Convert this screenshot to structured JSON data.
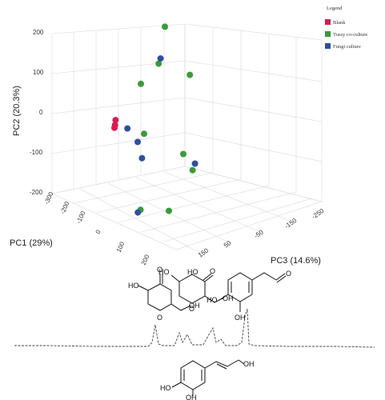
{
  "chart_data": {
    "type": "scatter",
    "dimensions": 3,
    "axes": {
      "pc1": {
        "label": "PC1 (29%)",
        "ticks": [
          "-300",
          "-200",
          "-100",
          "0",
          "100",
          "200"
        ]
      },
      "pc2": {
        "label": "PC2 (20.3%)",
        "ticks": [
          "200",
          "100",
          "0",
          "-100",
          "-200"
        ]
      },
      "pc3": {
        "label": "PC3 (14.6%)",
        "ticks": [
          "-250",
          "-150",
          "-50",
          "50",
          "150"
        ]
      }
    },
    "grid": true,
    "legend": {
      "title": "Legend",
      "placement": "top-right",
      "entries": [
        {
          "name": "Blank",
          "color": "#d81b54"
        },
        {
          "name": "Tussy co-culture",
          "color": "#3a9b3a"
        },
        {
          "name": "Fungi culture",
          "color": "#2e4f9e"
        }
      ]
    },
    "series": [
      {
        "name": "Blank",
        "color": "#d81b54",
        "points": [
          {
            "pc1": -150,
            "pc3": 40,
            "pc2": 15
          },
          {
            "pc1": -145,
            "pc3": 45,
            "pc2": 5
          },
          {
            "pc1": -140,
            "pc3": 50,
            "pc2": 0
          }
        ]
      },
      {
        "name": "Tussy co-culture",
        "color": "#3a9b3a",
        "points": [
          {
            "pc1": -80,
            "pc3": -100,
            "pc2": 240
          },
          {
            "pc1": -85,
            "pc3": -80,
            "pc2": 150
          },
          {
            "pc1": -60,
            "pc3": 0,
            "pc2": 120
          },
          {
            "pc1": -60,
            "pc3": -180,
            "pc2": 110
          },
          {
            "pc1": -40,
            "pc3": 0,
            "pc2": 0
          },
          {
            "pc1": -50,
            "pc3": -150,
            "pc2": -80
          },
          {
            "pc1": -60,
            "pc3": -190,
            "pc2": -130
          },
          {
            "pc1": 40,
            "pc3": 60,
            "pc2": -160
          },
          {
            "pc1": 30,
            "pc3": -50,
            "pc2": -185
          }
        ]
      },
      {
        "name": "Fungi culture",
        "color": "#2e4f9e",
        "points": [
          {
            "pc1": -90,
            "pc3": -90,
            "pc2": 160
          },
          {
            "pc1": -110,
            "pc3": 20,
            "pc2": 0
          },
          {
            "pc1": -80,
            "pc3": 0,
            "pc2": -30
          },
          {
            "pc1": -70,
            "pc3": -10,
            "pc2": -70
          },
          {
            "pc1": -45,
            "pc3": -190,
            "pc2": -110
          },
          {
            "pc1": 40,
            "pc3": 70,
            "pc2": -165
          }
        ]
      }
    ]
  },
  "structures": {
    "kojic_acid": [
      "O",
      "HO",
      "OH",
      "O"
    ],
    "second": [
      "HO",
      "O",
      "HO",
      "O",
      "OH"
    ],
    "aldehyde": [
      "HO",
      "OH",
      "O"
    ],
    "caffeyl_alcohol": [
      "HO",
      "OH",
      "OH"
    ]
  }
}
